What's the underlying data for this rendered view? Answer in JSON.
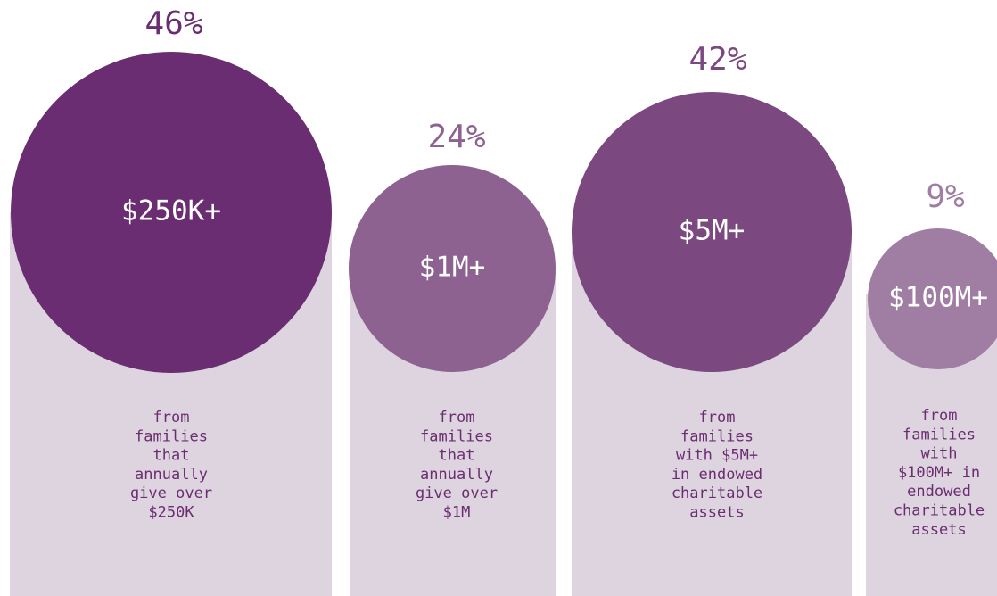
{
  "items": [
    {
      "percent": "46%",
      "label": "$250K+",
      "description": [
        "from",
        "families",
        "that",
        "annually",
        "give over",
        "$250K"
      ]
    },
    {
      "percent": "24%",
      "label": "$1M+",
      "description": [
        "from",
        "families",
        "that",
        "annually",
        "give over",
        "$1M"
      ]
    },
    {
      "percent": "42%",
      "label": "$5M+",
      "description": [
        "from",
        "families",
        "with $5M+",
        "in endowed",
        "charitable",
        "assets"
      ]
    },
    {
      "percent": "9%",
      "label": "$100M+",
      "description": [
        "from",
        "families",
        "with",
        "$100M+ in",
        "endowed",
        "charitable",
        "assets"
      ]
    }
  ]
}
